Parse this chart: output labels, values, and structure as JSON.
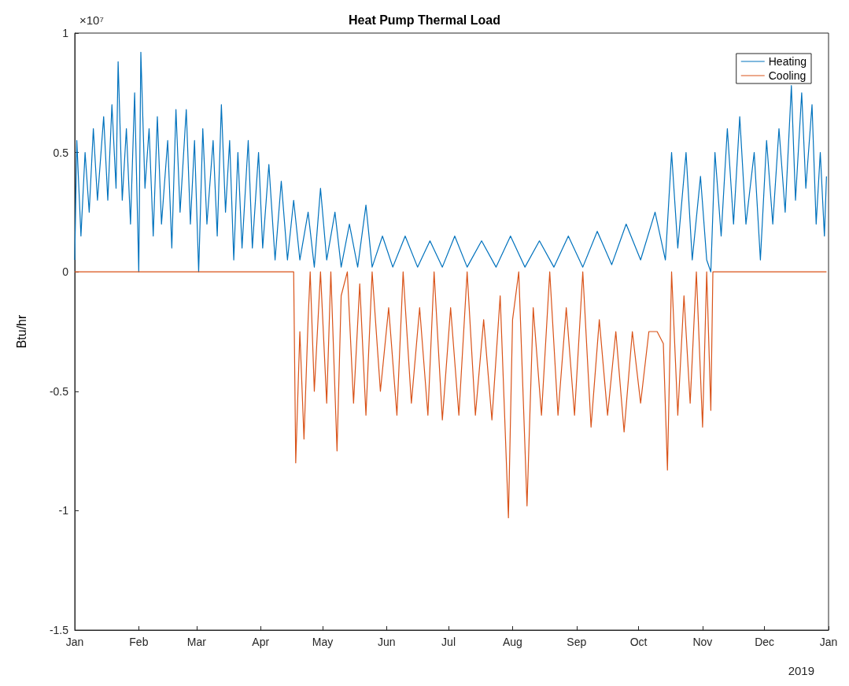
{
  "chart_data": {
    "type": "line",
    "title": "Heat Pump Thermal Load",
    "ylabel": "Btu/hr",
    "annotations": [
      "×10⁷",
      "2019"
    ],
    "xlim": [
      "2019-01-01",
      "2020-01-01"
    ],
    "xticks": [
      {
        "value": "2019-01-01",
        "label": "Jan"
      },
      {
        "value": "2019-02-01",
        "label": "Feb"
      },
      {
        "value": "2019-03-01",
        "label": "Mar"
      },
      {
        "value": "2019-04-01",
        "label": "Apr"
      },
      {
        "value": "2019-05-01",
        "label": "May"
      },
      {
        "value": "2019-06-01",
        "label": "Jun"
      },
      {
        "value": "2019-07-01",
        "label": "Jul"
      },
      {
        "value": "2019-08-01",
        "label": "Aug"
      },
      {
        "value": "2019-09-01",
        "label": "Sep"
      },
      {
        "value": "2019-10-01",
        "label": "Oct"
      },
      {
        "value": "2019-11-01",
        "label": "Nov"
      },
      {
        "value": "2019-12-01",
        "label": "Dec"
      },
      {
        "value": "2020-01-01",
        "label": "Jan"
      }
    ],
    "ylim": [
      -1.5,
      1
    ],
    "yticks": [
      -1.5,
      -1,
      -0.5,
      0,
      0.5,
      1
    ],
    "grid": false,
    "legend": "top right",
    "marker": "none",
    "line_style": "solid",
    "series": [
      {
        "name": "Heating",
        "color": "#0072bd",
        "x": [
          "2019-01-01",
          "2019-01-02",
          "2019-01-04",
          "2019-01-06",
          "2019-01-08",
          "2019-01-10",
          "2019-01-12",
          "2019-01-15",
          "2019-01-17",
          "2019-01-19",
          "2019-01-21",
          "2019-01-22",
          "2019-01-24",
          "2019-01-26",
          "2019-01-28",
          "2019-01-30",
          "2019-02-01",
          "2019-02-02",
          "2019-02-04",
          "2019-02-06",
          "2019-02-08",
          "2019-02-10",
          "2019-02-12",
          "2019-02-15",
          "2019-02-17",
          "2019-02-19",
          "2019-02-21",
          "2019-02-24",
          "2019-02-26",
          "2019-02-28",
          "2019-03-02",
          "2019-03-04",
          "2019-03-06",
          "2019-03-09",
          "2019-03-11",
          "2019-03-13",
          "2019-03-15",
          "2019-03-17",
          "2019-03-19",
          "2019-03-21",
          "2019-03-23",
          "2019-03-26",
          "2019-03-28",
          "2019-03-31",
          "2019-04-02",
          "2019-04-05",
          "2019-04-08",
          "2019-04-11",
          "2019-04-14",
          "2019-04-17",
          "2019-04-20",
          "2019-04-24",
          "2019-04-27",
          "2019-04-30",
          "2019-05-03",
          "2019-05-07",
          "2019-05-10",
          "2019-05-14",
          "2019-05-18",
          "2019-05-22",
          "2019-05-25",
          "2019-05-30",
          "2019-06-04",
          "2019-06-10",
          "2019-06-16",
          "2019-06-22",
          "2019-06-28",
          "2019-07-04",
          "2019-07-10",
          "2019-07-17",
          "2019-07-24",
          "2019-07-31",
          "2019-08-07",
          "2019-08-14",
          "2019-08-21",
          "2019-08-28",
          "2019-09-04",
          "2019-09-11",
          "2019-09-18",
          "2019-09-25",
          "2019-10-02",
          "2019-10-09",
          "2019-10-14",
          "2019-10-17",
          "2019-10-20",
          "2019-10-24",
          "2019-10-27",
          "2019-10-31",
          "2019-11-03",
          "2019-11-05",
          "2019-11-07",
          "2019-11-10",
          "2019-11-13",
          "2019-11-16",
          "2019-11-19",
          "2019-11-22",
          "2019-11-26",
          "2019-11-29",
          "2019-12-02",
          "2019-12-05",
          "2019-12-08",
          "2019-12-11",
          "2019-12-14",
          "2019-12-16",
          "2019-12-19",
          "2019-12-21",
          "2019-12-24",
          "2019-12-26",
          "2019-12-28",
          "2019-12-30",
          "2019-12-31"
        ],
        "values": [
          0.05,
          0.55,
          0.15,
          0.5,
          0.25,
          0.6,
          0.3,
          0.65,
          0.3,
          0.7,
          0.35,
          0.88,
          0.3,
          0.6,
          0.2,
          0.75,
          0.0,
          0.92,
          0.35,
          0.6,
          0.15,
          0.65,
          0.2,
          0.55,
          0.1,
          0.68,
          0.25,
          0.68,
          0.2,
          0.55,
          0.0,
          0.6,
          0.2,
          0.55,
          0.15,
          0.7,
          0.25,
          0.55,
          0.05,
          0.5,
          0.1,
          0.55,
          0.1,
          0.5,
          0.1,
          0.45,
          0.05,
          0.38,
          0.05,
          0.3,
          0.05,
          0.25,
          0.02,
          0.35,
          0.05,
          0.25,
          0.02,
          0.2,
          0.02,
          0.28,
          0.02,
          0.15,
          0.02,
          0.15,
          0.02,
          0.13,
          0.02,
          0.15,
          0.02,
          0.13,
          0.02,
          0.15,
          0.02,
          0.13,
          0.02,
          0.15,
          0.02,
          0.17,
          0.03,
          0.2,
          0.05,
          0.25,
          0.05,
          0.5,
          0.1,
          0.5,
          0.05,
          0.4,
          0.05,
          0.0,
          0.5,
          0.15,
          0.6,
          0.2,
          0.65,
          0.2,
          0.5,
          0.05,
          0.55,
          0.2,
          0.6,
          0.25,
          0.78,
          0.3,
          0.75,
          0.35,
          0.7,
          0.2,
          0.5,
          0.15,
          0.4
        ]
      },
      {
        "name": "Cooling",
        "color": "#d95319",
        "x": [
          "2019-01-01",
          "2019-04-17",
          "2019-04-18",
          "2019-04-20",
          "2019-04-22",
          "2019-04-24",
          "2019-04-25",
          "2019-04-27",
          "2019-04-30",
          "2019-05-03",
          "2019-05-05",
          "2019-05-08",
          "2019-05-10",
          "2019-05-13",
          "2019-05-16",
          "2019-05-19",
          "2019-05-22",
          "2019-05-25",
          "2019-05-29",
          "2019-06-02",
          "2019-06-06",
          "2019-06-09",
          "2019-06-13",
          "2019-06-17",
          "2019-06-21",
          "2019-06-24",
          "2019-06-28",
          "2019-07-02",
          "2019-07-06",
          "2019-07-10",
          "2019-07-14",
          "2019-07-18",
          "2019-07-22",
          "2019-07-26",
          "2019-07-30",
          "2019-08-01",
          "2019-08-04",
          "2019-08-08",
          "2019-08-11",
          "2019-08-15",
          "2019-08-19",
          "2019-08-23",
          "2019-08-27",
          "2019-08-31",
          "2019-09-04",
          "2019-09-08",
          "2019-09-12",
          "2019-09-16",
          "2019-09-20",
          "2019-09-24",
          "2019-09-28",
          "2019-10-02",
          "2019-10-06",
          "2019-10-10",
          "2019-10-13",
          "2019-10-15",
          "2019-10-17",
          "2019-10-20",
          "2019-10-23",
          "2019-10-26",
          "2019-10-29",
          "2019-11-01",
          "2019-11-03",
          "2019-11-05",
          "2019-11-06",
          "2019-12-31"
        ],
        "values": [
          0,
          0,
          -0.8,
          -0.25,
          -0.7,
          -0.2,
          0,
          -0.5,
          0,
          -0.55,
          0,
          -0.75,
          -0.1,
          0,
          -0.55,
          -0.05,
          -0.6,
          0,
          -0.5,
          -0.15,
          -0.6,
          0,
          -0.55,
          -0.15,
          -0.6,
          0,
          -0.62,
          -0.15,
          -0.6,
          0,
          -0.6,
          -0.2,
          -0.62,
          -0.1,
          -1.03,
          -0.2,
          0,
          -0.98,
          -0.15,
          -0.6,
          0,
          -0.6,
          -0.15,
          -0.6,
          0,
          -0.65,
          -0.2,
          -0.6,
          -0.25,
          -0.67,
          -0.25,
          -0.55,
          -0.25,
          -0.25,
          -0.3,
          -0.83,
          0,
          -0.6,
          -0.1,
          -0.55,
          0,
          -0.65,
          0,
          -0.58,
          0,
          0
        ]
      }
    ]
  }
}
